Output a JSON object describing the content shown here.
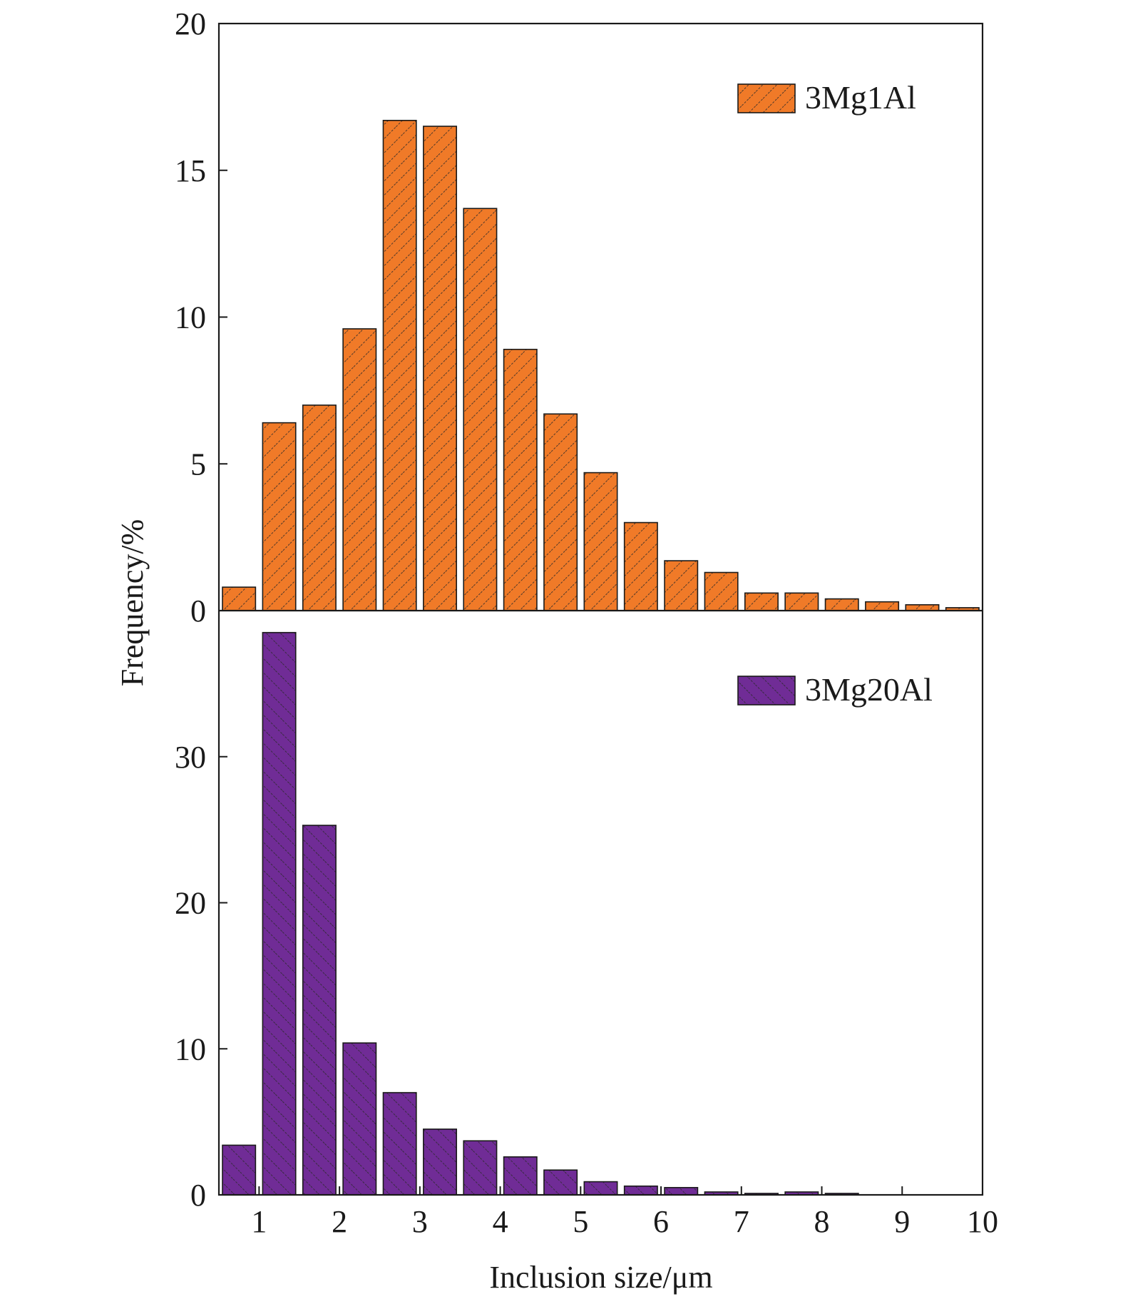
{
  "chart_data": {
    "type": "bar",
    "xlabel": "Inclusion size/μm",
    "ylabel": "Frequency/%",
    "xlim": [
      0.5,
      10
    ],
    "x_ticks": [
      1,
      2,
      3,
      4,
      5,
      6,
      7,
      8,
      9,
      10
    ],
    "x_tick_labels": [
      "1",
      "2",
      "3",
      "4",
      "5",
      "6",
      "7",
      "8",
      "9",
      "10"
    ],
    "bin_centers": [
      0.75,
      1.25,
      1.75,
      2.25,
      2.75,
      3.25,
      3.75,
      4.25,
      4.75,
      5.25,
      5.75,
      6.25,
      6.75,
      7.25,
      7.75,
      8.25,
      8.75,
      9.25,
      9.75
    ],
    "bin_width": 0.5,
    "panels": [
      {
        "legend": "3Mg1Al",
        "legend_position": "top-right",
        "color": "#F07A28",
        "hatch": "forward-diagonal",
        "ylim": [
          0,
          20
        ],
        "y_ticks": [
          0,
          5,
          10,
          15,
          20
        ],
        "y_tick_labels": [
          "0",
          "5",
          "10",
          "15",
          "20"
        ],
        "values": [
          0.8,
          6.4,
          7.0,
          9.6,
          16.7,
          16.5,
          13.7,
          8.9,
          6.7,
          4.7,
          3.0,
          1.7,
          1.3,
          0.6,
          0.6,
          0.4,
          0.3,
          0.2,
          0.1
        ]
      },
      {
        "legend": "3Mg20Al",
        "legend_position": "top-right",
        "color": "#702C96",
        "hatch": "back-diagonal",
        "ylim": [
          0,
          40
        ],
        "y_ticks": [
          0,
          10,
          20,
          30
        ],
        "y_tick_labels": [
          "0",
          "10",
          "20",
          "30"
        ],
        "values": [
          3.4,
          38.5,
          25.3,
          10.4,
          7.0,
          4.5,
          3.7,
          2.6,
          1.7,
          0.9,
          0.6,
          0.5,
          0.2,
          0.1,
          0.2,
          0.1,
          0.0,
          0.0,
          0.0
        ]
      }
    ]
  }
}
